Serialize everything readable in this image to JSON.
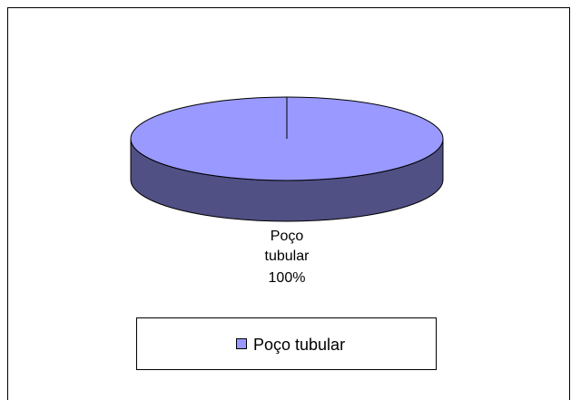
{
  "chart_data": {
    "type": "pie",
    "categories": [
      "Poço tubular"
    ],
    "values": [
      100
    ],
    "value_labels": [
      "100%"
    ],
    "colors": [
      "#9999ff"
    ],
    "legend": "bottom"
  }
}
